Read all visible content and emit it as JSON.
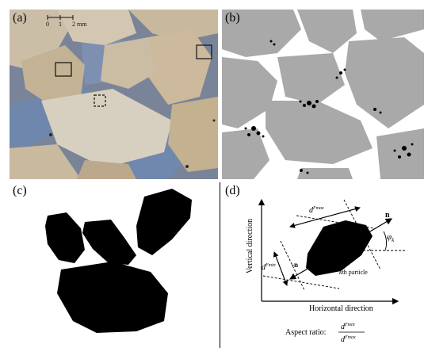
{
  "figure": {
    "panels": [
      {
        "label": "(a)"
      },
      {
        "label": "(b)"
      },
      {
        "label": "(c)"
      },
      {
        "label": "(d)"
      }
    ],
    "scalebar": {
      "ticks": [
        "0",
        "1",
        "2 mm"
      ]
    },
    "diagram": {
      "vertical_axis": "Vertical direction",
      "horizontal_axis": "Horizontal direction",
      "dfmax": "d",
      "dfmax_sup": "Fmax",
      "dfmin": "d",
      "dfmin_sup": "Fmin",
      "n_label": "n",
      "neg_n_label": "-n",
      "phi": "φ",
      "phi_sub": "k",
      "particle_k": "k",
      "particle_rest": "th particle",
      "aspect_ratio_label": "Aspect ratio:",
      "ratio_num": "d",
      "ratio_num_sup": "Fmin",
      "ratio_den": "d",
      "ratio_den_sup": "Fmax"
    },
    "colors": {
      "grain": "#a8a9a8",
      "void": "#ffffff",
      "black": "#000000",
      "photo_bg": "#7d8699",
      "sand1": "#cfc3ad",
      "sand2": "#bfae92",
      "resin": "#7f93b5"
    }
  }
}
